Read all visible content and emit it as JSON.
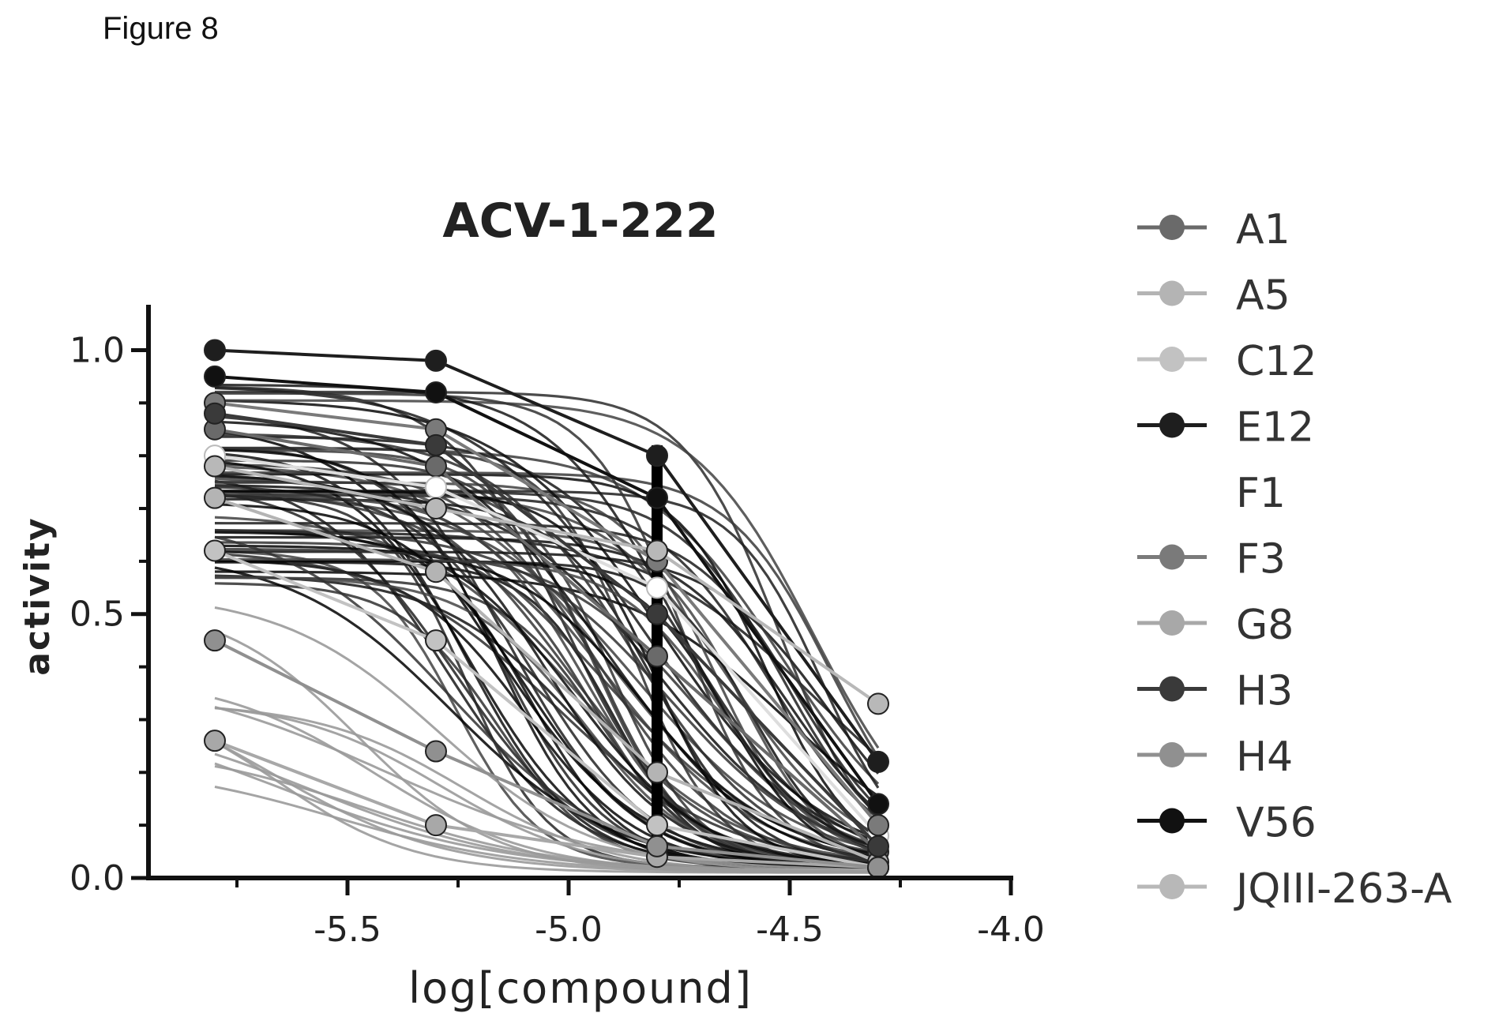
{
  "figure_label": "Figure 8",
  "chart_data": {
    "type": "line",
    "title": "ACV-1-222",
    "xlabel": "log[compound]",
    "ylabel": "activity",
    "xlim": [
      -5.95,
      -4.0
    ],
    "ylim": [
      0.0,
      1.08
    ],
    "x_ticks": [
      "-5.5",
      "-5.0",
      "-4.5",
      "-4.0"
    ],
    "x_tick_values": [
      -5.5,
      -5.0,
      -4.5,
      -4.0
    ],
    "y_ticks": [
      "0.0",
      "0.5",
      "1.0"
    ],
    "y_tick_values": [
      0.0,
      0.5,
      1.0
    ],
    "dose_x": [
      -5.8,
      -5.3,
      -4.8,
      -4.3
    ],
    "grid": false,
    "legend_position": "right",
    "series": [
      {
        "name": "A1",
        "color": "#6a6a6a",
        "values": [
          0.85,
          0.78,
          0.42,
          0.05
        ]
      },
      {
        "name": "A5",
        "color": "#b4b4b4",
        "values": [
          0.72,
          0.58,
          0.2,
          0.03
        ]
      },
      {
        "name": "C12",
        "color": "#c2c2c2",
        "values": [
          0.62,
          0.45,
          0.1,
          0.02
        ]
      },
      {
        "name": "E12",
        "color": "#1e1e1e",
        "values": [
          1.0,
          0.98,
          0.8,
          0.22
        ]
      },
      {
        "name": "F1",
        "color": "#ffffff",
        "values": [
          0.8,
          0.74,
          0.55,
          0.08
        ]
      },
      {
        "name": "F3",
        "color": "#7a7a7a",
        "values": [
          0.9,
          0.85,
          0.6,
          0.1
        ]
      },
      {
        "name": "G8",
        "color": "#a8a8a8",
        "values": [
          0.26,
          0.1,
          0.04,
          0.02
        ]
      },
      {
        "name": "H3",
        "color": "#3a3a3a",
        "values": [
          0.88,
          0.82,
          0.5,
          0.06
        ]
      },
      {
        "name": "H4",
        "color": "#909090",
        "values": [
          0.45,
          0.24,
          0.06,
          0.02
        ]
      },
      {
        "name": "V56",
        "color": "#111111",
        "values": [
          0.95,
          0.92,
          0.72,
          0.14
        ]
      },
      {
        "name": "JQIII-263-A",
        "color": "#b8b8b8",
        "values": [
          0.78,
          0.7,
          0.62,
          0.33
        ]
      }
    ]
  }
}
